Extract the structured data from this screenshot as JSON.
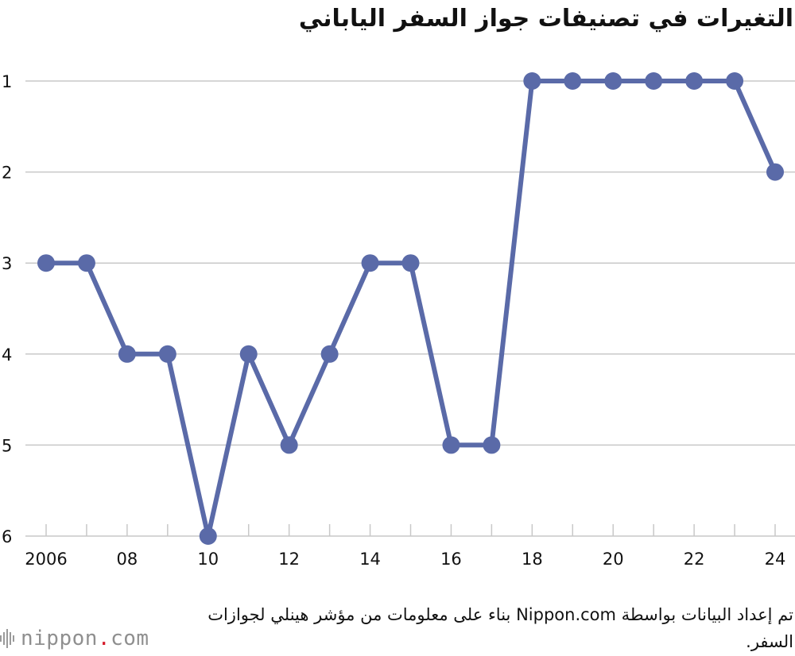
{
  "chart_data": {
    "type": "line",
    "title": "التغيرات في تصنيفات جواز السفر الياباني",
    "x": [
      2006,
      2007,
      2008,
      2009,
      2010,
      2011,
      2012,
      2013,
      2014,
      2015,
      2016,
      2017,
      2018,
      2019,
      2020,
      2021,
      2022,
      2023,
      2024
    ],
    "x_tick_labels": [
      "2006",
      "08",
      "10",
      "12",
      "14",
      "16",
      "18",
      "20",
      "22",
      "24"
    ],
    "series": [
      {
        "values": [
          3,
          3,
          4,
          4,
          6,
          4,
          5,
          4,
          3,
          3,
          5,
          5,
          1,
          1,
          1,
          1,
          1,
          1,
          2
        ]
      }
    ],
    "y_tick_labels": [
      "1",
      "2",
      "3",
      "4",
      "5",
      "6"
    ],
    "ylim": [
      1,
      6
    ],
    "y_inverted": true,
    "grid": "horizontal",
    "line_color": "#5a6aa8",
    "xlabel": "",
    "ylabel": ""
  },
  "source": "تم إعداد البيانات بواسطة Nippon.com بناء على معلومات من مؤشر هينلي لجوازات السفر.",
  "logo": {
    "name": "nippon",
    "dot": ".",
    "suffix": "com"
  }
}
